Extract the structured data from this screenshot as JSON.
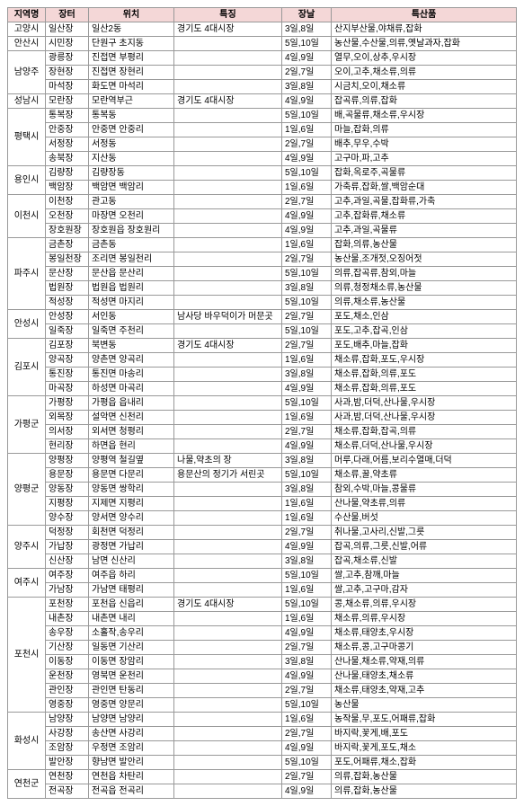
{
  "headers": [
    "지역명",
    "장터",
    "위치",
    "특징",
    "장날",
    "특산품"
  ],
  "rows": [
    {
      "region": "고양시",
      "market": "일산장",
      "location": "일산2동",
      "feature": "경기도 4대시장",
      "day": "3일,8일",
      "specialty": "산지부산물,야채류,잡화"
    },
    {
      "region": "안산시",
      "market": "시민장",
      "location": "단원구 초지동",
      "feature": "",
      "day": "5일,10일",
      "specialty": "농산물,수산물,의류,옛날과자,잡화"
    },
    {
      "region": "남양주",
      "market": "광릉장",
      "location": "진접면 부평리",
      "feature": "",
      "day": "4일,9일",
      "specialty": "열무,오이,상추,우시장"
    },
    {
      "region": "남양주",
      "market": "장현장",
      "location": "진접면 장현리",
      "feature": "",
      "day": "2일,7일",
      "specialty": "오이,고추,채소류,의류"
    },
    {
      "region": "남양주",
      "market": "마석장",
      "location": "화도면 마석리",
      "feature": "",
      "day": "3일,8일",
      "specialty": "시금치,오이,채소류"
    },
    {
      "region": "성남시",
      "market": "모란장",
      "location": "모란역부근",
      "feature": "경기도 4대시장",
      "day": "4일,9일",
      "specialty": "잡곡류,의류,잡화"
    },
    {
      "region": "평택시",
      "market": "통복장",
      "location": "통복동",
      "feature": "",
      "day": "5일,10일",
      "specialty": "배,곡물류,채소류,우시장"
    },
    {
      "region": "평택시",
      "market": "안중장",
      "location": "안중면 안중리",
      "feature": "",
      "day": "1일,6일",
      "specialty": "마늘,잡화,의류"
    },
    {
      "region": "평택시",
      "market": "서정장",
      "location": "서정동",
      "feature": "",
      "day": "2일,7일",
      "specialty": "배추,무우,수박"
    },
    {
      "region": "평택시",
      "market": "송북장",
      "location": "지산동",
      "feature": "",
      "day": "4일,9일",
      "specialty": "고구마,파,고추"
    },
    {
      "region": "용인시",
      "market": "김량장",
      "location": "김량장동",
      "feature": "",
      "day": "5일,10일",
      "specialty": "잡화,옥로주,곡물류"
    },
    {
      "region": "용인시",
      "market": "백암장",
      "location": "백암면 백암리",
      "feature": "",
      "day": "1일,6일",
      "specialty": "가축류,잡화,쌀,백암순대"
    },
    {
      "region": "이천시",
      "market": "이천장",
      "location": "관고동",
      "feature": "",
      "day": "2일,7일",
      "specialty": "고추,과일,곡물,잡화류,가축"
    },
    {
      "region": "이천시",
      "market": "오천장",
      "location": "마장면 오천리",
      "feature": "",
      "day": "4일,9일",
      "specialty": "고추,잡화류,채소류"
    },
    {
      "region": "이천시",
      "market": "장호원장",
      "location": "장호원읍 장호원리",
      "feature": "",
      "day": "4일,9일",
      "specialty": "고추,과일,곡물류"
    },
    {
      "region": "파주시",
      "market": "금촌장",
      "location": "금촌동",
      "feature": "",
      "day": "1일,6일",
      "specialty": "잡화,의류,농산물"
    },
    {
      "region": "파주시",
      "market": "봉일천장",
      "location": "조리면 봉일천리",
      "feature": "",
      "day": "2일,7일",
      "specialty": "농산물,조개젓,오징어젓"
    },
    {
      "region": "파주시",
      "market": "문산장",
      "location": "문산읍 문산리",
      "feature": "",
      "day": "5일,10일",
      "specialty": "의류,잡곡류,참외,마늘"
    },
    {
      "region": "파주시",
      "market": "법원장",
      "location": "법원읍 법원리",
      "feature": "",
      "day": "3일,8일",
      "specialty": "의류,청정채소류,농산물"
    },
    {
      "region": "파주시",
      "market": "적성장",
      "location": "적성면 마지리",
      "feature": "",
      "day": "5일,10일",
      "specialty": "의류,채소류,농산물"
    },
    {
      "region": "안성시",
      "market": "안성장",
      "location": "서인동",
      "feature": "남사당 바우덕이가 머문곳",
      "day": "2일,7일",
      "specialty": "포도,채소,인삼"
    },
    {
      "region": "안성시",
      "market": "일죽장",
      "location": "일죽면 주천리",
      "feature": "",
      "day": "5일,10일",
      "specialty": "포도,고추,잡곡,인삼"
    },
    {
      "region": "김포시",
      "market": "김포장",
      "location": "북변동",
      "feature": "경기도 4대시장",
      "day": "2일,7일",
      "specialty": "포도,배추,마늘,잡화"
    },
    {
      "region": "김포시",
      "market": "양곡장",
      "location": "양촌면 양곡리",
      "feature": "",
      "day": "1일,6일",
      "specialty": "채소류,잡화,포도,우시장"
    },
    {
      "region": "김포시",
      "market": "통진장",
      "location": "통진면 마송리",
      "feature": "",
      "day": "3일,8일",
      "specialty": "채소류,잡화,의류,포도"
    },
    {
      "region": "김포시",
      "market": "마곡장",
      "location": "하성면 마곡리",
      "feature": "",
      "day": "4일,9일",
      "specialty": "채소류,잡화,의류,포도"
    },
    {
      "region": "가평군",
      "market": "가평장",
      "location": "가평읍 읍내리",
      "feature": "",
      "day": "5일,10일",
      "specialty": "사과,밤,더덕,산나물,우시장"
    },
    {
      "region": "가평군",
      "market": "외목장",
      "location": "설악면 신천리",
      "feature": "",
      "day": "1일,6일",
      "specialty": "사과,밤,더덕,산나물,우시장"
    },
    {
      "region": "가평군",
      "market": "의서장",
      "location": "외서면 청평리",
      "feature": "",
      "day": "2일,7일",
      "specialty": "채소류,잡화,잡곡,의류"
    },
    {
      "region": "가평군",
      "market": "현리장",
      "location": "하면읍 현리",
      "feature": "",
      "day": "4일,9일",
      "specialty": "채소류,더덕,산나물,우시장"
    },
    {
      "region": "양평군",
      "market": "양평장",
      "location": "양평역 철길옆",
      "feature": "나물,약초의 장",
      "day": "3일,8일",
      "specialty": "머루,다래,어름,보리수열매,더덕"
    },
    {
      "region": "양평군",
      "market": "용문장",
      "location": "용문면 다문리",
      "feature": "용문산의 정기가 서린곳",
      "day": "5일,10일",
      "specialty": "채소류,꿀,약초류"
    },
    {
      "region": "양평군",
      "market": "양동장",
      "location": "양동면 쌍학리",
      "feature": "",
      "day": "3일,8일",
      "specialty": "참외,수박,마늘,콩물류"
    },
    {
      "region": "양평군",
      "market": "지평장",
      "location": "지제면 지평리",
      "feature": "",
      "day": "1일,6일",
      "specialty": "산나물,약초류,의류"
    },
    {
      "region": "양평군",
      "market": "양수장",
      "location": "양서면 양수리",
      "feature": "",
      "day": "1일,6일",
      "specialty": "수산물,버섯"
    },
    {
      "region": "양주시",
      "market": "덕정장",
      "location": "회천면 덕정리",
      "feature": "",
      "day": "2일,7일",
      "specialty": "취나물,고사리,신발,그릇"
    },
    {
      "region": "양주시",
      "market": "가납장",
      "location": "광정면 가납리",
      "feature": "",
      "day": "4일,9일",
      "specialty": "잡곡,의류,그릇,신발,어류"
    },
    {
      "region": "양주시",
      "market": "신산장",
      "location": "남면 신산리",
      "feature": "",
      "day": "3일,8일",
      "specialty": "잡곡,채소류,신발"
    },
    {
      "region": "여주시",
      "market": "여주장",
      "location": "여주읍 하리",
      "feature": "",
      "day": "5일,10일",
      "specialty": "쌀,고추,참깨,마늘"
    },
    {
      "region": "여주시",
      "market": "가남장",
      "location": "가남면 태평리",
      "feature": "",
      "day": "1일,6일",
      "specialty": "쌀,고추,고구마,감자"
    },
    {
      "region": "포천시",
      "market": "포천장",
      "location": "포천읍 신읍리",
      "feature": "경기도 4대시장",
      "day": "5일,10일",
      "specialty": "콩,채소류,의류,우시장"
    },
    {
      "region": "포천시",
      "market": "내촌장",
      "location": "내촌면 내리",
      "feature": "",
      "day": "1일,6일",
      "specialty": "채소류,의류,우시장"
    },
    {
      "region": "포천시",
      "market": "송우장",
      "location": "소홀작,송우리",
      "feature": "",
      "day": "4일,9일",
      "specialty": "채소류,태양초,우시장"
    },
    {
      "region": "포천시",
      "market": "기산장",
      "location": "일동면 기산리",
      "feature": "",
      "day": "2일,7일",
      "specialty": "채소류,콩,고구마콩기"
    },
    {
      "region": "포천시",
      "market": "이동장",
      "location": "이동면 장암리",
      "feature": "",
      "day": "3일,8일",
      "specialty": "산나물,채소류,약재,의류"
    },
    {
      "region": "포천시",
      "market": "운천장",
      "location": "영북면 운천리",
      "feature": "",
      "day": "4일,9일",
      "specialty": "산나물,태양초,채소류"
    },
    {
      "region": "포천시",
      "market": "관인장",
      "location": "관인면 탄동리",
      "feature": "",
      "day": "2일,7일",
      "specialty": "채소류,태양초,약재,고추"
    },
    {
      "region": "포천시",
      "market": "영중장",
      "location": "영중면 양문리",
      "feature": "",
      "day": "5일,10일",
      "specialty": "농산물"
    },
    {
      "region": "화성시",
      "market": "남양장",
      "location": "남양면 남양리",
      "feature": "",
      "day": "1일,6일",
      "specialty": "농작물,무,포도,어패류,잡화"
    },
    {
      "region": "화성시",
      "market": "사강장",
      "location": "송산면 사강리",
      "feature": "",
      "day": "2일,7일",
      "specialty": "바지락,꽃게,배,포도"
    },
    {
      "region": "화성시",
      "market": "조암장",
      "location": "우정면 조암리",
      "feature": "",
      "day": "4일,9일",
      "specialty": "바지락,꽃게,포도,채소"
    },
    {
      "region": "화성시",
      "market": "발안장",
      "location": "향남면 발안리",
      "feature": "",
      "day": "5일,10일",
      "specialty": "포도,어패류,채소,잡화"
    },
    {
      "region": "연천군",
      "market": "연천장",
      "location": "연천읍 차탄리",
      "feature": "",
      "day": "2일,7일",
      "specialty": "의류,잡화,농산물"
    },
    {
      "region": "연천군",
      "market": "전곡장",
      "location": "전곡읍 전곡리",
      "feature": "",
      "day": "4일,9일",
      "specialty": "의류,잡화,농산물"
    }
  ]
}
